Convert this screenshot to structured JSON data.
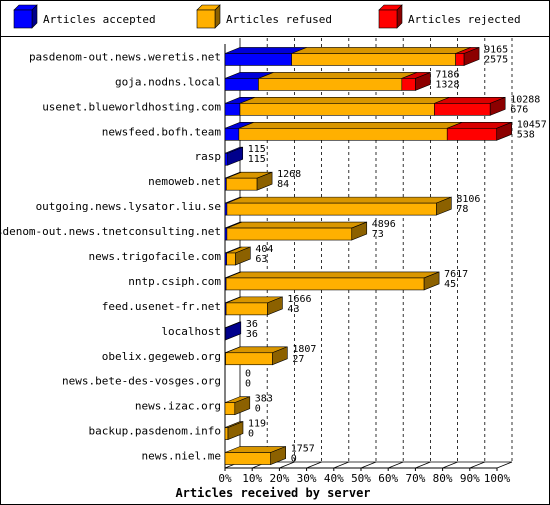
{
  "chart_data": {
    "type": "bar",
    "stacked": true,
    "orientation": "horizontal",
    "xlabel": "Articles received by server",
    "x_ticks": [
      "0%",
      "10%",
      "20%",
      "30%",
      "40%",
      "50%",
      "60%",
      "70%",
      "80%",
      "90%",
      "100%"
    ],
    "xlim": [
      0,
      100
    ],
    "grid": true,
    "legend_position": "top",
    "series": [
      {
        "name": "Articles accepted",
        "color": "#0000ff"
      },
      {
        "name": "Articles refused",
        "color": "#ffb000"
      },
      {
        "name": "Articles rejected",
        "color": "#ff0000"
      }
    ],
    "categories": [
      "pasdenom-out.news.weretis.net",
      "goja.nodns.local",
      "usenet.blueworldhosting.com",
      "newsfeed.bofh.team",
      "rasp",
      "nemoweb.net",
      "outgoing.news.lysator.liu.se",
      "pasdenom-out.news.tnetconsulting.net",
      "news.trigofacile.com",
      "nntp.csiph.com",
      "feed.usenet-fr.net",
      "localhost",
      "obelix.gegeweb.org",
      "news.bete-des-vosges.org",
      "news.izac.org",
      "backup.pasdenom.info",
      "news.niel.me"
    ],
    "rows": [
      {
        "offered": "9165",
        "accepted": "2575",
        "pct": [
          24.5,
          60.3,
          3.1
        ]
      },
      {
        "offered": "7186",
        "accepted": "1328",
        "pct": [
          12.3,
          52.7,
          5.0
        ]
      },
      {
        "offered": "10288",
        "accepted": "676",
        "pct": [
          5.5,
          71.5,
          20.5
        ]
      },
      {
        "offered": "10457",
        "accepted": "538",
        "pct": [
          5.1,
          76.6,
          18.2
        ]
      },
      {
        "offered": "115",
        "accepted": "115",
        "pct": [
          1.0,
          0,
          0
        ]
      },
      {
        "offered": "1268",
        "accepted": "84",
        "pct": [
          0.5,
          11.3,
          0
        ]
      },
      {
        "offered": "8106",
        "accepted": "78",
        "pct": [
          0.7,
          77.0,
          0
        ]
      },
      {
        "offered": "4896",
        "accepted": "73",
        "pct": [
          0.7,
          45.9,
          0
        ]
      },
      {
        "offered": "404",
        "accepted": "63",
        "pct": [
          0.6,
          3.2,
          0
        ]
      },
      {
        "offered": "7617",
        "accepted": "45",
        "pct": [
          0.4,
          72.8,
          0
        ]
      },
      {
        "offered": "1666",
        "accepted": "43",
        "pct": [
          0.4,
          15.2,
          0
        ]
      },
      {
        "offered": "36",
        "accepted": "36",
        "pct": [
          0.3,
          0,
          0
        ]
      },
      {
        "offered": "1807",
        "accepted": "27",
        "pct": [
          0.2,
          17.2,
          0
        ]
      },
      {
        "offered": "0",
        "accepted": "0",
        "pct": [
          0,
          0,
          0
        ]
      },
      {
        "offered": "383",
        "accepted": "0",
        "pct": [
          0,
          3.6,
          0
        ]
      },
      {
        "offered": "119",
        "accepted": "0",
        "pct": [
          0,
          1.1,
          0
        ]
      },
      {
        "offered": "1757",
        "accepted": "0",
        "pct": [
          0,
          16.8,
          0
        ]
      }
    ]
  }
}
